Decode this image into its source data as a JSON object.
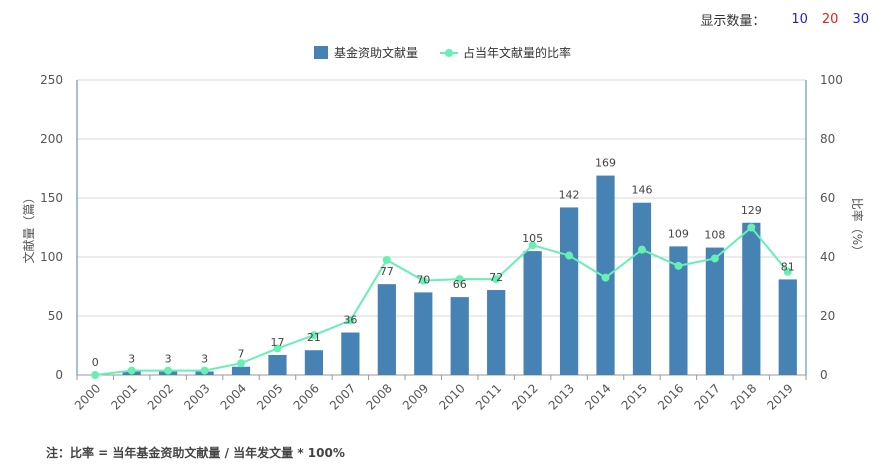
{
  "display_count": {
    "label": "显示数量：",
    "options": [
      {
        "label": "10",
        "color": "#1f1fd6"
      },
      {
        "label": "20",
        "color": "#e02020"
      },
      {
        "label": "30",
        "color": "#1f1fd6"
      }
    ]
  },
  "note": "注：比率 = 当年基金资助文献量 / 当年发文量 * 100%",
  "chart_data": {
    "type": "bar",
    "categories": [
      "2000",
      "2001",
      "2002",
      "2003",
      "2004",
      "2005",
      "2006",
      "2007",
      "2008",
      "2009",
      "2010",
      "2011",
      "2012",
      "2013",
      "2014",
      "2015",
      "2016",
      "2017",
      "2018",
      "2019"
    ],
    "series": [
      {
        "name": "基金资助文献量",
        "type": "bar",
        "axis": "left",
        "color": "#4682b4",
        "values": [
          0,
          3,
          3,
          3,
          7,
          17,
          21,
          36,
          77,
          70,
          66,
          72,
          105,
          142,
          169,
          146,
          109,
          108,
          129,
          81
        ],
        "labels": [
          "0",
          "3",
          "3",
          "3",
          "7",
          "17",
          "21",
          "36",
          "77",
          "70",
          "66",
          "72",
          "105",
          "142",
          "169",
          "146",
          "109",
          "108",
          "129",
          "81"
        ]
      },
      {
        "name": "占当年文献量的比率",
        "type": "line",
        "axis": "right",
        "color": "#66f0b4",
        "values": [
          0,
          1.5,
          1.5,
          1.5,
          4,
          9,
          13.5,
          18.5,
          39,
          32,
          32.5,
          32.5,
          44,
          40.5,
          33,
          42.5,
          37,
          39.5,
          50,
          35
        ]
      }
    ],
    "ylabel": "文献量（篇）",
    "ylabel_right": "比率（%）",
    "ylim": [
      0,
      250
    ],
    "yticks": [
      "0",
      "50",
      "100",
      "150",
      "200",
      "250"
    ],
    "ylim_right": [
      0,
      100
    ],
    "yticks_right": [
      "0",
      "20",
      "40",
      "60",
      "80",
      "100"
    ],
    "grid": true,
    "legend": "top-center"
  }
}
